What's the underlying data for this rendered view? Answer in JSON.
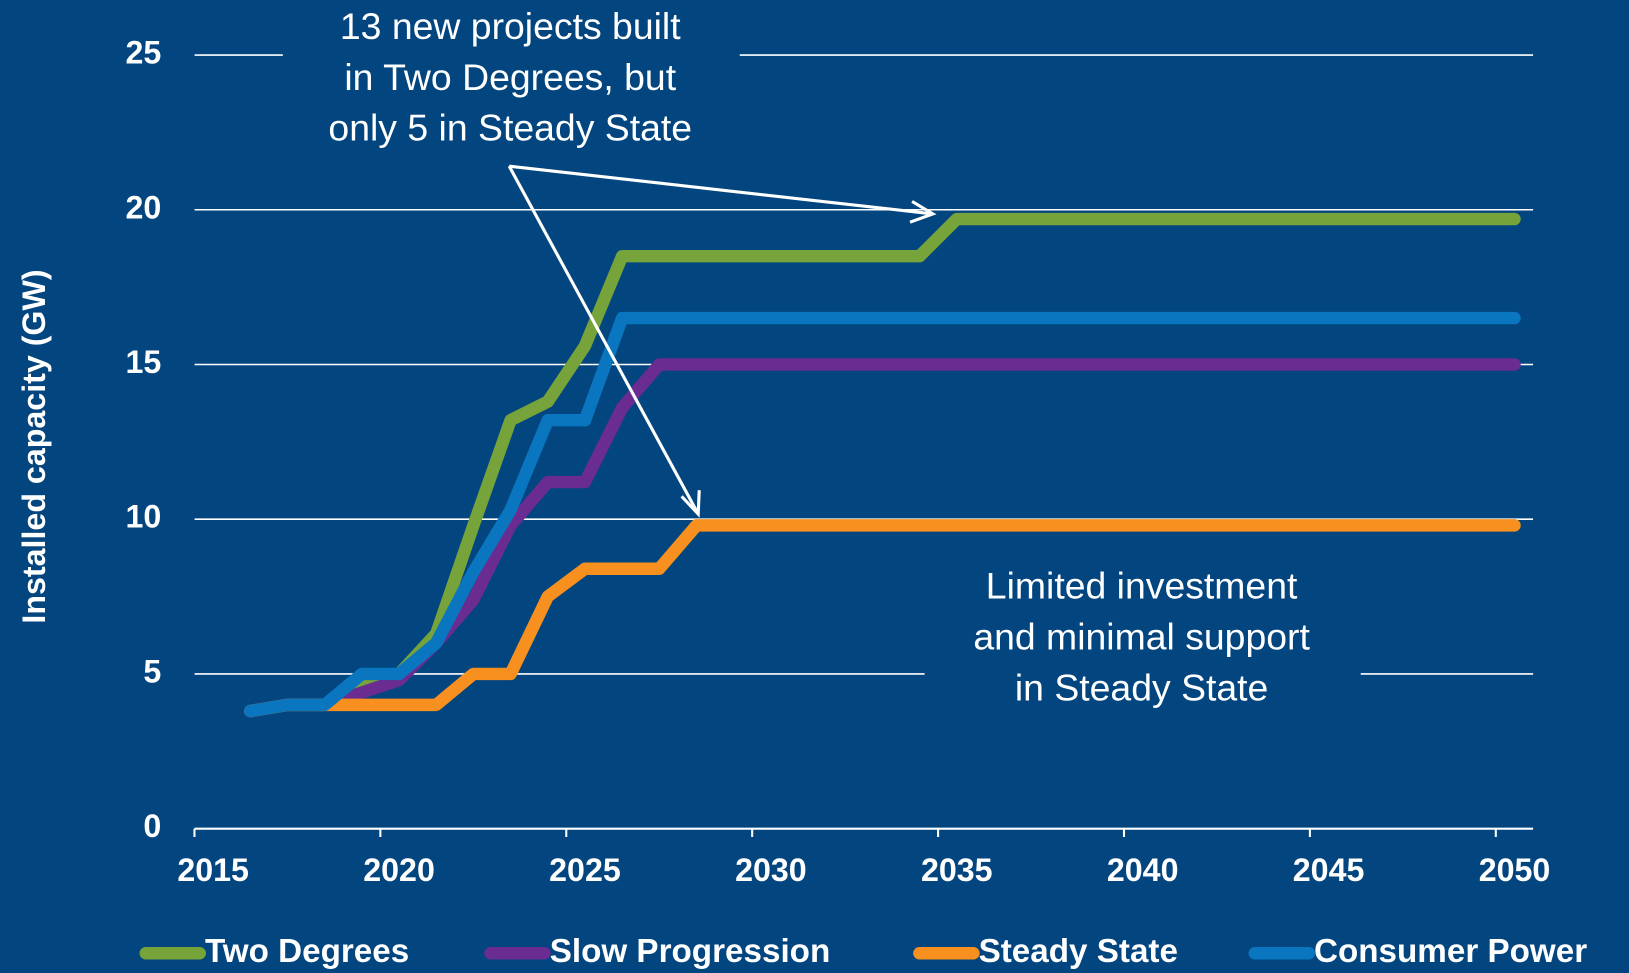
{
  "chart_data": {
    "type": "line",
    "y_label": "Installed capacity (GW)",
    "x": [
      2016,
      2017,
      2018,
      2019,
      2020,
      2021,
      2022,
      2023,
      2024,
      2025,
      2026,
      2027,
      2028,
      2029,
      2030,
      2031,
      2032,
      2033,
      2034,
      2035,
      2036,
      2037,
      2038,
      2039,
      2040,
      2041,
      2042,
      2043,
      2044,
      2045,
      2046,
      2047,
      2048,
      2049,
      2050
    ],
    "series": [
      {
        "name": "Two Degrees",
        "color": "#76a33a",
        "values": [
          3.8,
          4.0,
          4.0,
          4.6,
          5.0,
          6.3,
          9.8,
          13.2,
          13.8,
          15.6,
          18.5,
          18.5,
          18.5,
          18.5,
          18.5,
          18.5,
          18.5,
          18.5,
          18.5,
          19.7,
          19.7,
          19.7,
          19.7,
          19.7,
          19.7,
          19.7,
          19.7,
          19.7,
          19.7,
          19.7,
          19.7,
          19.7,
          19.7,
          19.7,
          19.7
        ]
      },
      {
        "name": "Slow Progression",
        "color": "#6a2c91",
        "values": [
          3.8,
          4.0,
          4.0,
          4.4,
          4.8,
          6.0,
          7.4,
          9.8,
          11.2,
          11.2,
          13.6,
          15.0,
          15.0,
          15.0,
          15.0,
          15.0,
          15.0,
          15.0,
          15.0,
          15.0,
          15.0,
          15.0,
          15.0,
          15.0,
          15.0,
          15.0,
          15.0,
          15.0,
          15.0,
          15.0,
          15.0,
          15.0,
          15.0,
          15.0,
          15.0
        ]
      },
      {
        "name": "Steady State",
        "color": "#f7901e",
        "values": [
          3.8,
          4.0,
          4.0,
          4.0,
          4.0,
          4.0,
          5.0,
          5.0,
          7.5,
          8.4,
          8.4,
          8.4,
          9.8,
          9.8,
          9.8,
          9.8,
          9.8,
          9.8,
          9.8,
          9.8,
          9.8,
          9.8,
          9.8,
          9.8,
          9.8,
          9.8,
          9.8,
          9.8,
          9.8,
          9.8,
          9.8,
          9.8,
          9.8,
          9.8,
          9.8
        ]
      },
      {
        "name": "Consumer Power",
        "color": "#0b76c0",
        "values": [
          3.8,
          4.0,
          4.0,
          5.0,
          5.0,
          6.0,
          8.3,
          10.3,
          13.2,
          13.2,
          16.5,
          16.5,
          16.5,
          16.5,
          16.5,
          16.5,
          16.5,
          16.5,
          16.5,
          16.5,
          16.5,
          16.5,
          16.5,
          16.5,
          16.5,
          16.5,
          16.5,
          16.5,
          16.5,
          16.5,
          16.5,
          16.5,
          16.5,
          16.5,
          16.5
        ]
      }
    ],
    "xlim": [
      2014.5,
      2050.5
    ],
    "xticks": [
      2015,
      2020,
      2025,
      2030,
      2035,
      2040,
      2045,
      2050
    ],
    "ylim": [
      0,
      25
    ],
    "yticks": [
      0,
      5,
      10,
      15,
      20,
      25
    ],
    "grid": true,
    "legend": "bottom",
    "annotations": [
      {
        "lines": [
          "13 new projects built",
          "in Two Degrees, but",
          "only 5 in Steady State"
        ]
      },
      {
        "lines": [
          "Limited investment",
          "and minimal support",
          "in Steady State"
        ]
      }
    ]
  }
}
